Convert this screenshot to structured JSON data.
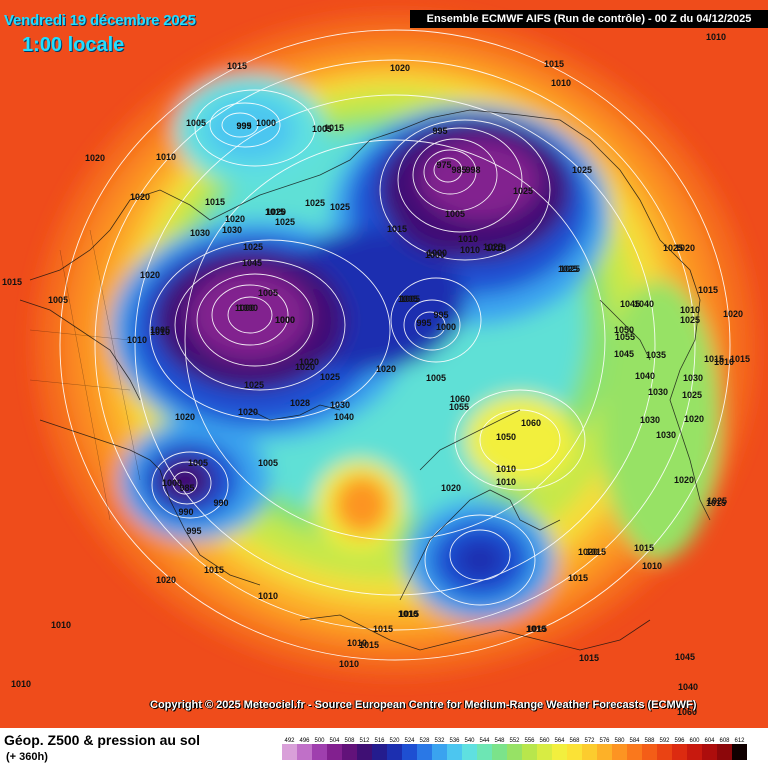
{
  "header": {
    "date": "Vendredi 19 décembre 2025",
    "time": "1:00 locale",
    "run": "Ensemble ECMWF AIFS  (Run de contrôle)  -  00 Z du 04/12/2025"
  },
  "copyright": "Copyright © 2025 Meteociel.fr - Source European Centre for Medium-Range Weather Forecasts (ECMWF)",
  "footer": {
    "parameter": "Géop. Z500 & pression au sol",
    "lead_time": "(+ 360h)"
  },
  "scale": {
    "values": [
      "492",
      "496",
      "500",
      "504",
      "508",
      "512",
      "516",
      "520",
      "524",
      "528",
      "532",
      "536",
      "540",
      "544",
      "548",
      "552",
      "556",
      "560",
      "564",
      "568",
      "572",
      "576",
      "580",
      "584",
      "588",
      "592",
      "596",
      "600",
      "604",
      "608",
      "612"
    ],
    "colors": [
      "#d9a0d9",
      "#c070c8",
      "#9f3fae",
      "#82208f",
      "#62127a",
      "#3f0f74",
      "#241c8e",
      "#1c2fb0",
      "#1e4fd2",
      "#2a78e6",
      "#3aa3ef",
      "#4cc6f0",
      "#5fe0e0",
      "#6de6b4",
      "#7be38a",
      "#97e265",
      "#b8e64c",
      "#d8ec43",
      "#f2ef3e",
      "#fbe236",
      "#fccc2e",
      "#fdb128",
      "#fd9422",
      "#fa781c",
      "#f45d17",
      "#ea4313",
      "#dc2b10",
      "#c8190e",
      "#ad0d0c",
      "#8c070a",
      "#100000"
    ]
  },
  "map": {
    "isobars": [
      "1010",
      "1020",
      "1015",
      "1010",
      "1015",
      "1020",
      "1010",
      "1005",
      "995",
      "999",
      "1000",
      "1005",
      "1015",
      "1020",
      "1015",
      "1015",
      "1020",
      "1025",
      "1025",
      "1020",
      "1025",
      "1030",
      "1030",
      "1015",
      "1045",
      "1020",
      "1025",
      "1015",
      "1005",
      "1010",
      "1005",
      "1005",
      "1000",
      "1000",
      "1000",
      "1005",
      "1010",
      "1000",
      "1000",
      "1005",
      "995",
      "995",
      "1000",
      "1010",
      "1025",
      "1025",
      "1025",
      "1020",
      "1020",
      "1025",
      "1028",
      "1030",
      "1040",
      "1005",
      "1020",
      "1000",
      "1005",
      "985",
      "990",
      "990",
      "995",
      "1005",
      "1015",
      "1020",
      "1010",
      "1015",
      "1010",
      "1015",
      "1010",
      "1010",
      "995",
      "975",
      "985",
      "998",
      "1005",
      "1010",
      "1010",
      "1015",
      "1025",
      "1025",
      "1025",
      "1000",
      "1020",
      "1020",
      "1045",
      "1040",
      "1050",
      "1055",
      "1045",
      "1035",
      "1040",
      "1025",
      "1020",
      "1030",
      "1030",
      "1025",
      "1020",
      "1030",
      "1030",
      "1020",
      "1015",
      "1010",
      "1025",
      "1025",
      "1020",
      "1015",
      "1010",
      "1015",
      "1015",
      "1020",
      "1015",
      "1015",
      "1010",
      "1015",
      "1040",
      "1045",
      "1060",
      "1060",
      "1055",
      "1050",
      "1060",
      "1010",
      "1010",
      "1020",
      "1010",
      "1015",
      "1015",
      "1015",
      "1010",
      "1010"
    ]
  }
}
